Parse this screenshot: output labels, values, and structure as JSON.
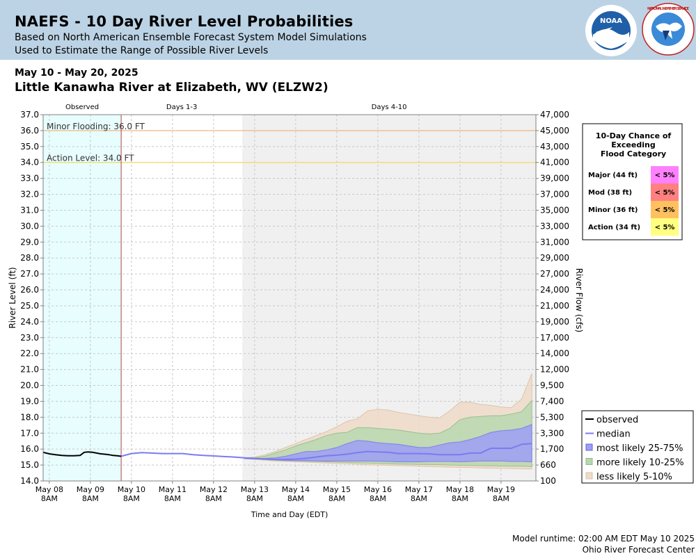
{
  "header": {
    "title": "NAEFS - 10 Day River Level Probabilities",
    "subtitle1": "Based on North American Ensemble Forecast System Model Simulations",
    "subtitle2": "Used to Estimate the Range of Possible River Levels",
    "noaa_logo_text": "NOAA",
    "nws_logo_text": "NATIONAL WEATHER SERVICE"
  },
  "date_range": "May 10 - May 20, 2025",
  "station": "Little Kanawha River at Elizabeth, WV (ELZW2)",
  "footer": {
    "runtime": "Model runtime: 02:00 AM EDT May 10 2025",
    "center": "Ohio River Forecast Center"
  },
  "colors": {
    "observed_bg": "#e8fdfe",
    "days4_10_bg": "#f0f0f0",
    "minor_line": "#f0b070",
    "action_line": "#f0dc60",
    "median": "#7b7bf0",
    "band_25_75": "#9e9ef4",
    "band_10_25": "#b8d8b0",
    "band_5_10": "#eedbc8",
    "major": "#ff80ff",
    "moderate": "#ff8080",
    "minor": "#ffc060",
    "action": "#ffff80"
  },
  "chart_data": {
    "type": "area",
    "xlabel": "Time and Day (EDT)",
    "ylabel": "River Level (ft)",
    "y2label": "River Flow (cfs)",
    "ylim": [
      14.0,
      37.0
    ],
    "xlim": [
      -1.9,
      10.1
    ],
    "section_labels": [
      "Observed",
      "Days 1-3",
      "Days 4-10"
    ],
    "x_ticks": [
      {
        "x": -1.75,
        "day": "May 08",
        "time": "8AM"
      },
      {
        "x": -0.75,
        "day": "May 09",
        "time": "8AM"
      },
      {
        "x": 0.25,
        "day": "May 10",
        "time": "8AM"
      },
      {
        "x": 1.25,
        "day": "May 11",
        "time": "8AM"
      },
      {
        "x": 2.25,
        "day": "May 12",
        "time": "8AM"
      },
      {
        "x": 3.25,
        "day": "May 13",
        "time": "8AM"
      },
      {
        "x": 4.25,
        "day": "May 14",
        "time": "8AM"
      },
      {
        "x": 5.25,
        "day": "May 15",
        "time": "8AM"
      },
      {
        "x": 6.25,
        "day": "May 16",
        "time": "8AM"
      },
      {
        "x": 7.25,
        "day": "May 17",
        "time": "8AM"
      },
      {
        "x": 8.25,
        "day": "May 18",
        "time": "8AM"
      },
      {
        "x": 9.25,
        "day": "May 19",
        "time": "8AM"
      }
    ],
    "y_ticks": [
      "14.0",
      "15.0",
      "16.0",
      "17.0",
      "18.0",
      "19.0",
      "20.0",
      "21.0",
      "22.0",
      "23.0",
      "24.0",
      "25.0",
      "26.0",
      "27.0",
      "28.0",
      "29.0",
      "30.0",
      "31.0",
      "32.0",
      "33.0",
      "34.0",
      "35.0",
      "36.0",
      "37.0"
    ],
    "flow_ticks": [
      "100",
      "660",
      "1,700",
      "3,300",
      "5,300",
      "7,400",
      "9,500",
      "12,000",
      "14,000",
      "17,000",
      "19,000",
      "21,000",
      "24,000",
      "27,000",
      "29,000",
      "31,000",
      "33,000",
      "35,000",
      "37,000",
      "39,000",
      "41,000",
      "43,000",
      "45,000",
      "47,000"
    ],
    "thresholds": [
      {
        "name": "Minor Flooding",
        "label": "Minor Flooding: 36.0 FT",
        "value": 36.0
      },
      {
        "name": "Action Level",
        "label": "Action Level: 34.0 FT",
        "value": 34.0
      }
    ],
    "observed": {
      "name": "observed",
      "x": [
        -1.9,
        -1.75,
        -1.6,
        -1.45,
        -1.3,
        -1.15,
        -1.0,
        -0.9,
        -0.8,
        -0.7,
        -0.6,
        -0.5,
        -0.4,
        -0.3,
        -0.2,
        -0.1,
        0.0
      ],
      "y": [
        15.8,
        15.7,
        15.65,
        15.6,
        15.58,
        15.58,
        15.6,
        15.8,
        15.82,
        15.8,
        15.75,
        15.7,
        15.68,
        15.65,
        15.6,
        15.58,
        15.55
      ]
    },
    "median": {
      "name": "median",
      "x": [
        0,
        0.25,
        0.5,
        0.75,
        1.0,
        1.25,
        1.5,
        1.75,
        2.0,
        2.25,
        2.5,
        2.75,
        3.0,
        3.25,
        3.5,
        3.75,
        4.0,
        4.25,
        4.5,
        4.75,
        5.0,
        5.25,
        5.5,
        5.75,
        6.0,
        6.25,
        6.5,
        6.75,
        7.0,
        7.25,
        7.5,
        7.75,
        8.0,
        8.25,
        8.5,
        8.75,
        9.0,
        9.25,
        9.5,
        9.75,
        10.0
      ],
      "y": [
        15.55,
        15.72,
        15.78,
        15.75,
        15.72,
        15.72,
        15.72,
        15.65,
        15.6,
        15.57,
        15.53,
        15.5,
        15.45,
        15.42,
        15.38,
        15.35,
        15.35,
        15.37,
        15.42,
        15.5,
        15.58,
        15.62,
        15.68,
        15.78,
        15.85,
        15.82,
        15.8,
        15.72,
        15.72,
        15.72,
        15.7,
        15.65,
        15.65,
        15.65,
        15.75,
        15.75,
        16.05,
        16.05,
        16.05,
        16.3,
        16.35
      ]
    },
    "bands": [
      {
        "name": "less likely 5-10%",
        "x": [
          3.0,
          3.25,
          3.5,
          3.75,
          4.0,
          4.25,
          4.5,
          4.75,
          5.0,
          5.25,
          5.5,
          5.75,
          6.0,
          6.25,
          6.5,
          6.75,
          7.0,
          7.25,
          7.5,
          7.75,
          8.0,
          8.25,
          8.5,
          8.75,
          9.0,
          9.25,
          9.5,
          9.75,
          10.0
        ],
        "upper": [
          15.45,
          15.5,
          15.65,
          15.85,
          16.1,
          16.35,
          16.6,
          16.85,
          17.1,
          17.4,
          17.75,
          17.9,
          18.4,
          18.5,
          18.45,
          18.3,
          18.2,
          18.1,
          18.0,
          17.95,
          18.4,
          18.95,
          18.95,
          18.8,
          18.75,
          18.65,
          18.6,
          19.15,
          20.75
        ],
        "lower": [
          15.4,
          15.35,
          15.3,
          15.25,
          15.22,
          15.2,
          15.18,
          15.15,
          15.12,
          15.1,
          15.08,
          15.05,
          15.02,
          15.0,
          14.98,
          14.96,
          14.95,
          14.92,
          14.9,
          14.88,
          14.86,
          14.85,
          14.84,
          14.82,
          14.8,
          14.8,
          14.78,
          14.76,
          14.75
        ]
      },
      {
        "name": "more likely 10-25%",
        "x": [
          3.0,
          3.25,
          3.5,
          3.75,
          4.0,
          4.25,
          4.5,
          4.75,
          5.0,
          5.25,
          5.5,
          5.75,
          6.0,
          6.25,
          6.5,
          6.75,
          7.0,
          7.25,
          7.5,
          7.75,
          8.0,
          8.25,
          8.5,
          8.75,
          9.0,
          9.25,
          9.5,
          9.75,
          10.0
        ],
        "upper": [
          15.42,
          15.45,
          15.55,
          15.75,
          15.95,
          16.2,
          16.4,
          16.6,
          16.85,
          17.0,
          17.05,
          17.35,
          17.35,
          17.3,
          17.25,
          17.2,
          17.1,
          17.0,
          16.95,
          17.0,
          17.3,
          17.85,
          18.0,
          18.05,
          18.1,
          18.1,
          18.2,
          18.35,
          19.05
        ],
        "lower": [
          15.4,
          15.38,
          15.34,
          15.3,
          15.28,
          15.26,
          15.24,
          15.22,
          15.2,
          15.18,
          15.16,
          15.14,
          15.12,
          15.1,
          15.08,
          15.06,
          15.05,
          15.04,
          15.03,
          15.02,
          15.0,
          14.98,
          14.97,
          14.96,
          14.95,
          14.94,
          14.93,
          14.92,
          14.9
        ]
      },
      {
        "name": "most likely 25-75%",
        "x": [
          3.0,
          3.25,
          3.5,
          3.75,
          4.0,
          4.25,
          4.5,
          4.75,
          5.0,
          5.25,
          5.5,
          5.75,
          6.0,
          6.25,
          6.5,
          6.75,
          7.0,
          7.25,
          7.5,
          7.75,
          8.0,
          8.25,
          8.5,
          8.75,
          9.0,
          9.25,
          9.5,
          9.75,
          10.0
        ],
        "upper": [
          15.43,
          15.42,
          15.42,
          15.45,
          15.55,
          15.7,
          15.85,
          15.85,
          15.95,
          16.1,
          16.35,
          16.55,
          16.5,
          16.4,
          16.35,
          16.3,
          16.2,
          16.1,
          16.1,
          16.25,
          16.4,
          16.45,
          16.6,
          16.8,
          17.05,
          17.15,
          17.2,
          17.3,
          17.55
        ],
        "lower": [
          15.4,
          15.38,
          15.36,
          15.33,
          15.3,
          15.28,
          15.27,
          15.26,
          15.25,
          15.25,
          15.25,
          15.25,
          15.25,
          15.24,
          15.22,
          15.2,
          15.2,
          15.2,
          15.22,
          15.22,
          15.22,
          15.2,
          15.22,
          15.25,
          15.25,
          15.25,
          15.22,
          15.22,
          15.2
        ]
      }
    ],
    "legend": {
      "placement": "bottom-right",
      "entries": [
        "observed",
        "median",
        "most likely 25-75%",
        "more likely 10-25%",
        "less likely 5-10%"
      ]
    },
    "flood_table": {
      "title_lines": [
        "10-Day Chance of",
        "Exceeding",
        "Flood Category"
      ],
      "rows": [
        {
          "category": "Major (44 ft)",
          "chance": "< 5%",
          "color": "#ff80ff"
        },
        {
          "category": "Mod (38 ft)",
          "chance": "< 5%",
          "color": "#ff8080"
        },
        {
          "category": "Minor (36 ft)",
          "chance": "< 5%",
          "color": "#ffc060"
        },
        {
          "category": "Action (34 ft)",
          "chance": "< 5%",
          "color": "#ffff80"
        }
      ]
    }
  }
}
